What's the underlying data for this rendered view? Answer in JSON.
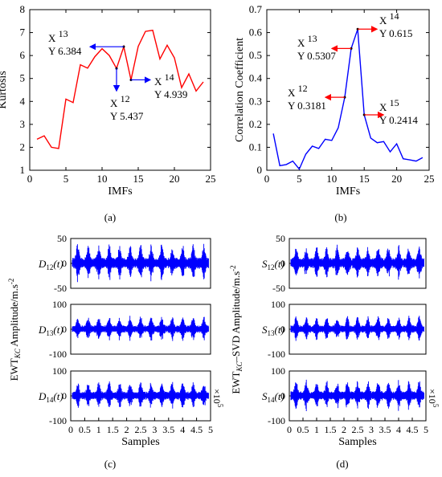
{
  "chart_data": [
    {
      "type": "line",
      "panel": "a",
      "panel_label": "(a)",
      "xlabel": "IMFs",
      "ylabel": "Kurtosis",
      "xlim": [
        0,
        25
      ],
      "ylim": [
        1,
        8
      ],
      "xticks": [
        0,
        5,
        10,
        15,
        20,
        25
      ],
      "yticks": [
        1,
        2,
        3,
        4,
        5,
        6,
        7,
        8
      ],
      "line_color": "#ff0000",
      "series": [
        {
          "x": [
            1,
            2,
            3,
            4,
            5,
            6,
            7,
            8,
            9,
            10,
            11,
            12,
            13,
            14,
            15,
            16,
            17,
            18,
            19,
            20,
            21,
            22,
            23,
            24
          ],
          "values": [
            2.35,
            2.5,
            2.0,
            1.95,
            4.1,
            3.95,
            5.6,
            5.45,
            5.95,
            6.3,
            6.0,
            5.437,
            6.384,
            4.939,
            6.4,
            7.05,
            7.1,
            5.85,
            6.45,
            5.9,
            4.6,
            5.2,
            4.45,
            4.85
          ]
        }
      ],
      "datatips": [
        {
          "x_label": "X",
          "x_value": "13",
          "y_label": "Y",
          "y_value": "6.384",
          "px": 13,
          "py": 6.384,
          "arrow": "left"
        },
        {
          "x_label": "X",
          "x_value": "12",
          "y_label": "Y",
          "y_value": "5.437",
          "px": 12,
          "py": 5.437,
          "arrow": "down"
        },
        {
          "x_label": "X",
          "x_value": "14",
          "y_label": "Y",
          "y_value": "4.939",
          "px": 14,
          "py": 4.939,
          "arrow": "right"
        }
      ]
    },
    {
      "type": "line",
      "panel": "b",
      "panel_label": "(b)",
      "xlabel": "IMFs",
      "ylabel": "Correlation Coefficient",
      "xlim": [
        0,
        25
      ],
      "ylim": [
        0,
        0.7
      ],
      "xticks": [
        0,
        5,
        10,
        15,
        20,
        25
      ],
      "yticks": [
        0,
        0.1,
        0.2,
        0.3,
        0.4,
        0.5,
        0.6,
        0.7
      ],
      "line_color": "#0000ff",
      "series": [
        {
          "x": [
            1,
            2,
            3,
            4,
            5,
            6,
            7,
            8,
            9,
            10,
            11,
            12,
            13,
            14,
            15,
            16,
            17,
            18,
            19,
            20,
            21,
            22,
            23,
            24
          ],
          "values": [
            0.16,
            0.02,
            0.025,
            0.04,
            0.005,
            0.07,
            0.105,
            0.095,
            0.135,
            0.13,
            0.185,
            0.3181,
            0.5307,
            0.615,
            0.2414,
            0.14,
            0.12,
            0.125,
            0.08,
            0.115,
            0.05,
            0.045,
            0.04,
            0.055
          ]
        }
      ],
      "datatips": [
        {
          "x_label": "X",
          "x_value": "13",
          "y_label": "Y",
          "y_value": "0.5307",
          "px": 13,
          "py": 0.5307,
          "arrow": "left"
        },
        {
          "x_label": "X",
          "x_value": "14",
          "y_label": "Y",
          "y_value": "0.615",
          "px": 14,
          "py": 0.615,
          "arrow": "right"
        },
        {
          "x_label": "X",
          "x_value": "12",
          "y_label": "Y",
          "y_value": "0.3181",
          "px": 12,
          "py": 0.3181,
          "arrow": "left"
        },
        {
          "x_label": "X",
          "x_value": "15",
          "y_label": "Y",
          "y_value": "0.2414",
          "px": 15,
          "py": 0.2414,
          "arrow": "right"
        }
      ]
    },
    {
      "type": "line",
      "panel": "c",
      "panel_label": "(c)",
      "xlabel": "Samples",
      "ylabel": "EWT_KC Amplitude/m.s⁻²",
      "ylabel_main": "EWT",
      "ylabel_sub": "KC",
      "ylabel_rest": " Amplitude/m.s",
      "ylabel_sup": "-2",
      "xlim": [
        0,
        5
      ],
      "xticks": [
        "0",
        "0.5",
        "1",
        "1.5",
        "2",
        "2.5",
        "3",
        "3.5",
        "4",
        "4.5",
        "5"
      ],
      "x_multiplier": "×10",
      "x_multiplier_exp": "5",
      "line_color": "#0000ff",
      "subplots": [
        {
          "label_main": "D",
          "label_sub": "12",
          "label_rest": "(t)",
          "ylim": [
            -50,
            50
          ],
          "yticks": [
            "50",
            "0",
            "-50"
          ],
          "amplitude": 40,
          "bursts": 13
        },
        {
          "label_main": "D",
          "label_sub": "13",
          "label_rest": "(t)",
          "ylim": [
            -100,
            100
          ],
          "yticks": [
            "100",
            "0",
            "-100"
          ],
          "amplitude": 55,
          "bursts": 13
        },
        {
          "label_main": "D",
          "label_sub": "14",
          "label_rest": "(t)",
          "ylim": [
            -100,
            100
          ],
          "yticks": [
            "100",
            "0",
            "-100"
          ],
          "amplitude": 60,
          "bursts": 13
        }
      ]
    },
    {
      "type": "line",
      "panel": "d",
      "panel_label": "(d)",
      "xlabel": "Samples",
      "ylabel": "EWT_KC–SVD Amplitude/m.s⁻²",
      "ylabel_main": "EWT",
      "ylabel_sub": "KC",
      "ylabel_rest": "–SVD Amplitude/m.s",
      "ylabel_sup": "-2",
      "xlim": [
        0,
        5
      ],
      "xticks": [
        "0",
        "0.5",
        "1",
        "1.5",
        "2",
        "2.5",
        "3",
        "3.5",
        "4",
        "4.5",
        "5"
      ],
      "x_multiplier": "×10",
      "x_multiplier_exp": "5",
      "line_color": "#0000ff",
      "subplots": [
        {
          "label_main": "S",
          "label_sub": "12",
          "label_rest": "(t)",
          "ylim": [
            -50,
            50
          ],
          "yticks": [
            "50",
            "0",
            "-50"
          ],
          "amplitude": 38,
          "bursts": 13
        },
        {
          "label_main": "S",
          "label_sub": "13",
          "label_rest": "(t)",
          "ylim": [
            -100,
            100
          ],
          "yticks": [
            "100",
            "0",
            "-100"
          ],
          "amplitude": 55,
          "bursts": 13
        },
        {
          "label_main": "S",
          "label_sub": "14",
          "label_rest": "(t)",
          "ylim": [
            -100,
            100
          ],
          "yticks": [
            "100",
            "0",
            "-100"
          ],
          "amplitude": 65,
          "bursts": 13
        }
      ]
    }
  ]
}
